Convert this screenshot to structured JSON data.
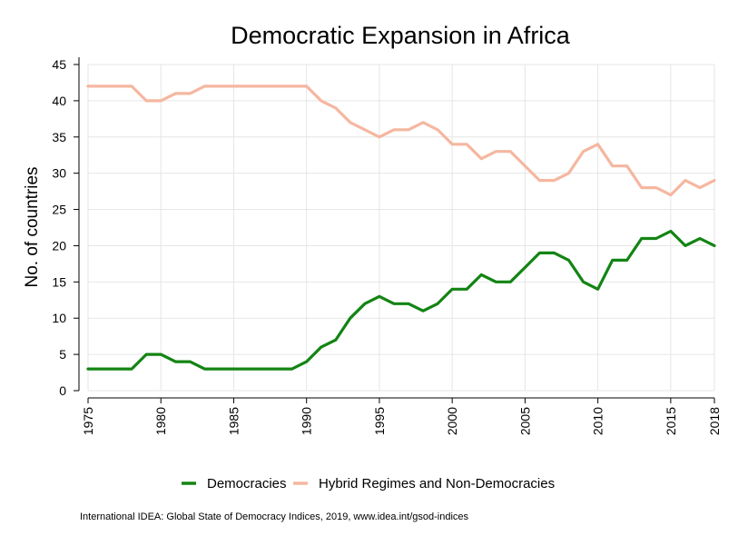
{
  "chart_data": {
    "type": "line",
    "title": "Democratic Expansion in Africa",
    "ylabel": "No. of countries",
    "xlabel": "",
    "x": [
      1975,
      1976,
      1977,
      1978,
      1979,
      1980,
      1981,
      1982,
      1983,
      1984,
      1985,
      1986,
      1987,
      1988,
      1989,
      1990,
      1991,
      1992,
      1993,
      1994,
      1995,
      1996,
      1997,
      1998,
      1999,
      2000,
      2001,
      2002,
      2003,
      2004,
      2005,
      2006,
      2007,
      2008,
      2009,
      2010,
      2011,
      2012,
      2013,
      2014,
      2015,
      2016,
      2017,
      2018
    ],
    "xticks": [
      "1975",
      "1980",
      "1985",
      "1990",
      "1995",
      "2000",
      "2005",
      "2010",
      "2015",
      "2018"
    ],
    "yticks": [
      "0",
      "5",
      "10",
      "15",
      "20",
      "25",
      "30",
      "35",
      "40",
      "45"
    ],
    "xlim": [
      1975,
      2018
    ],
    "ylim": [
      0,
      45
    ],
    "grid": true,
    "legend_position": "bottom",
    "series": [
      {
        "name": "Democracies",
        "color": "#138413",
        "values": [
          3,
          3,
          3,
          3,
          5,
          5,
          4,
          4,
          3,
          3,
          3,
          3,
          3,
          3,
          3,
          4,
          6,
          7,
          10,
          12,
          13,
          12,
          12,
          11,
          12,
          14,
          14,
          16,
          15,
          15,
          17,
          19,
          19,
          18,
          15,
          14,
          18,
          18,
          21,
          21,
          22,
          20,
          21,
          20
        ]
      },
      {
        "name": "Hybrid Regimes and Non-Democracies",
        "color": "#f5b7a0",
        "values": [
          42,
          42,
          42,
          42,
          40,
          40,
          41,
          41,
          42,
          42,
          42,
          42,
          42,
          42,
          42,
          42,
          40,
          39,
          37,
          36,
          35,
          36,
          36,
          37,
          36,
          34,
          34,
          32,
          33,
          33,
          31,
          29,
          29,
          30,
          33,
          34,
          31,
          31,
          28,
          28,
          27,
          29,
          28,
          29
        ]
      }
    ],
    "source": "International IDEA: Global State of Democracy Indices, 2019, www.idea.int/gsod-indices"
  }
}
